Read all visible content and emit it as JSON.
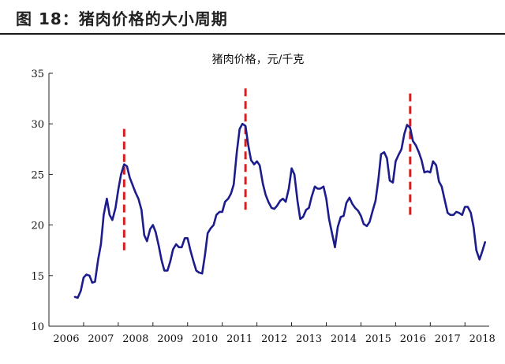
{
  "figure": {
    "title": "图 18：猪肉价格的大小周期"
  },
  "chart_data": {
    "type": "line",
    "title": "猪肉价格，元/千克",
    "xlabel": "",
    "ylabel": "",
    "xlim": [
      2006,
      2018.7
    ],
    "ylim": [
      10,
      35
    ],
    "x_ticks": [
      "2006",
      "2007",
      "2008",
      "2009",
      "2010",
      "2011",
      "2012",
      "2013",
      "2014",
      "2015",
      "2016",
      "2017",
      "2018"
    ],
    "y_ticks": [
      "10",
      "15",
      "20",
      "25",
      "30",
      "35"
    ],
    "grid": false,
    "series": [
      {
        "color": "#1c1c8c",
        "points": [
          [
            2006.75,
            12.9
          ],
          [
            2006.83,
            12.8
          ],
          [
            2006.92,
            13.5
          ],
          [
            2007.0,
            14.8
          ],
          [
            2007.08,
            15.1
          ],
          [
            2007.17,
            15.0
          ],
          [
            2007.25,
            14.3
          ],
          [
            2007.33,
            14.4
          ],
          [
            2007.42,
            16.6
          ],
          [
            2007.5,
            18.1
          ],
          [
            2007.58,
            21.0
          ],
          [
            2007.67,
            22.6
          ],
          [
            2007.75,
            21.0
          ],
          [
            2007.83,
            20.5
          ],
          [
            2007.92,
            21.7
          ],
          [
            2008.0,
            23.5
          ],
          [
            2008.08,
            25.0
          ],
          [
            2008.17,
            26.0
          ],
          [
            2008.25,
            25.8
          ],
          [
            2008.33,
            24.7
          ],
          [
            2008.42,
            23.9
          ],
          [
            2008.5,
            23.2
          ],
          [
            2008.58,
            22.6
          ],
          [
            2008.67,
            21.5
          ],
          [
            2008.75,
            19.0
          ],
          [
            2008.83,
            18.4
          ],
          [
            2008.92,
            19.6
          ],
          [
            2009.0,
            20.0
          ],
          [
            2009.08,
            19.3
          ],
          [
            2009.17,
            17.9
          ],
          [
            2009.25,
            16.5
          ],
          [
            2009.33,
            15.5
          ],
          [
            2009.42,
            15.5
          ],
          [
            2009.5,
            16.4
          ],
          [
            2009.58,
            17.6
          ],
          [
            2009.67,
            18.1
          ],
          [
            2009.75,
            17.8
          ],
          [
            2009.83,
            17.8
          ],
          [
            2009.92,
            18.7
          ],
          [
            2010.0,
            18.7
          ],
          [
            2010.08,
            17.5
          ],
          [
            2010.17,
            16.4
          ],
          [
            2010.25,
            15.5
          ],
          [
            2010.33,
            15.3
          ],
          [
            2010.42,
            15.2
          ],
          [
            2010.5,
            17.0
          ],
          [
            2010.58,
            19.2
          ],
          [
            2010.67,
            19.7
          ],
          [
            2010.75,
            20.0
          ],
          [
            2010.83,
            21.0
          ],
          [
            2010.92,
            21.3
          ],
          [
            2011.0,
            21.3
          ],
          [
            2011.08,
            22.3
          ],
          [
            2011.17,
            22.6
          ],
          [
            2011.25,
            23.1
          ],
          [
            2011.33,
            24.0
          ],
          [
            2011.42,
            27.2
          ],
          [
            2011.5,
            29.5
          ],
          [
            2011.58,
            30.0
          ],
          [
            2011.67,
            29.8
          ],
          [
            2011.75,
            27.9
          ],
          [
            2011.83,
            26.4
          ],
          [
            2011.92,
            26.0
          ],
          [
            2012.0,
            26.3
          ],
          [
            2012.08,
            25.9
          ],
          [
            2012.17,
            24.1
          ],
          [
            2012.25,
            23.0
          ],
          [
            2012.33,
            22.3
          ],
          [
            2012.42,
            21.7
          ],
          [
            2012.5,
            21.6
          ],
          [
            2012.58,
            21.9
          ],
          [
            2012.67,
            22.4
          ],
          [
            2012.75,
            22.6
          ],
          [
            2012.83,
            22.3
          ],
          [
            2012.92,
            23.6
          ],
          [
            2013.0,
            25.6
          ],
          [
            2013.08,
            25.0
          ],
          [
            2013.17,
            22.4
          ],
          [
            2013.25,
            20.6
          ],
          [
            2013.33,
            20.8
          ],
          [
            2013.42,
            21.5
          ],
          [
            2013.5,
            21.7
          ],
          [
            2013.58,
            22.8
          ],
          [
            2013.67,
            23.8
          ],
          [
            2013.75,
            23.6
          ],
          [
            2013.83,
            23.6
          ],
          [
            2013.92,
            23.8
          ],
          [
            2014.0,
            22.6
          ],
          [
            2014.08,
            20.6
          ],
          [
            2014.17,
            19.1
          ],
          [
            2014.25,
            17.8
          ],
          [
            2014.33,
            19.8
          ],
          [
            2014.42,
            20.8
          ],
          [
            2014.5,
            20.9
          ],
          [
            2014.58,
            22.2
          ],
          [
            2014.67,
            22.7
          ],
          [
            2014.75,
            22.1
          ],
          [
            2014.83,
            21.7
          ],
          [
            2014.92,
            21.4
          ],
          [
            2015.0,
            20.9
          ],
          [
            2015.08,
            20.1
          ],
          [
            2015.17,
            19.9
          ],
          [
            2015.25,
            20.3
          ],
          [
            2015.33,
            21.3
          ],
          [
            2015.42,
            22.4
          ],
          [
            2015.5,
            24.4
          ],
          [
            2015.58,
            27.0
          ],
          [
            2015.67,
            27.2
          ],
          [
            2015.75,
            26.6
          ],
          [
            2015.83,
            24.4
          ],
          [
            2015.92,
            24.2
          ],
          [
            2016.0,
            26.3
          ],
          [
            2016.08,
            26.9
          ],
          [
            2016.17,
            27.5
          ],
          [
            2016.25,
            29.0
          ],
          [
            2016.33,
            29.9
          ],
          [
            2016.42,
            29.6
          ],
          [
            2016.5,
            28.3
          ],
          [
            2016.58,
            27.9
          ],
          [
            2016.67,
            27.2
          ],
          [
            2016.75,
            26.4
          ],
          [
            2016.83,
            25.2
          ],
          [
            2016.92,
            25.3
          ],
          [
            2017.0,
            25.2
          ],
          [
            2017.08,
            26.3
          ],
          [
            2017.17,
            25.9
          ],
          [
            2017.25,
            24.3
          ],
          [
            2017.33,
            23.8
          ],
          [
            2017.42,
            22.4
          ],
          [
            2017.5,
            21.2
          ],
          [
            2017.58,
            21.0
          ],
          [
            2017.67,
            21.0
          ],
          [
            2017.75,
            21.3
          ],
          [
            2017.83,
            21.2
          ],
          [
            2017.92,
            21.0
          ],
          [
            2018.0,
            21.8
          ],
          [
            2018.08,
            21.8
          ],
          [
            2018.17,
            21.2
          ],
          [
            2018.25,
            19.8
          ],
          [
            2018.33,
            17.5
          ],
          [
            2018.42,
            16.6
          ],
          [
            2018.5,
            17.4
          ],
          [
            2018.58,
            18.3
          ]
        ]
      }
    ],
    "annotations": [
      {
        "type": "vline-dashed",
        "color": "#d42020",
        "x": 2008.17,
        "y_range": [
          17.5,
          29.5
        ]
      },
      {
        "type": "vline-dashed",
        "color": "#d42020",
        "x": 2011.67,
        "y_range": [
          21.5,
          33.5
        ]
      },
      {
        "type": "vline-dashed",
        "color": "#d42020",
        "x": 2016.42,
        "y_range": [
          21.0,
          33.0
        ]
      }
    ]
  }
}
